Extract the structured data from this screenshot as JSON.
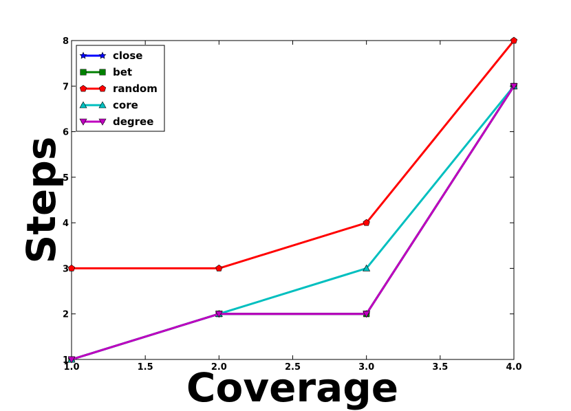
{
  "chart_data": {
    "type": "line",
    "xlabel": "Coverage",
    "ylabel": "Steps",
    "xlim": [
      1.0,
      4.0
    ],
    "ylim": [
      1,
      8
    ],
    "x_ticks": [
      "1.0",
      "1.5",
      "2.0",
      "2.5",
      "3.0",
      "3.5",
      "4.0"
    ],
    "y_ticks": [
      "1",
      "2",
      "3",
      "4",
      "5",
      "6",
      "7",
      "8"
    ],
    "grid": false,
    "legend_position": "top-left",
    "x": [
      1.0,
      2.0,
      3.0,
      4.0
    ],
    "series": [
      {
        "name": "close",
        "values": [
          1,
          2,
          2,
          7
        ],
        "color": "#0000ff",
        "marker": "star"
      },
      {
        "name": "bet",
        "values": [
          1,
          2,
          2,
          7
        ],
        "color": "#008000",
        "marker": "square"
      },
      {
        "name": "random",
        "values": [
          3,
          3,
          4,
          8
        ],
        "color": "#ff0000",
        "marker": "pentagon"
      },
      {
        "name": "core",
        "values": [
          1,
          2,
          3,
          7
        ],
        "color": "#00bfbf",
        "marker": "triangle-up"
      },
      {
        "name": "degree",
        "values": [
          1,
          2,
          2,
          7
        ],
        "color": "#bf00bf",
        "marker": "triangle-down"
      }
    ]
  }
}
